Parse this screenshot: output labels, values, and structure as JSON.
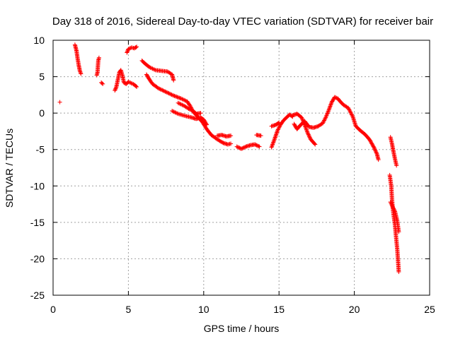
{
  "chart_data": {
    "type": "scatter",
    "title": "Day 318 of 2016, Sidereal Day-to-day VTEC variation (SDTVAR) for receiver bair",
    "xlabel": "GPS time / hours",
    "ylabel": "SDTVAR / TECUs",
    "xlim": [
      0,
      25
    ],
    "ylim": [
      -25,
      10
    ],
    "xticks": [
      "0",
      "5",
      "10",
      "15",
      "20",
      "25"
    ],
    "yticks": [
      "-25",
      "-20",
      "-15",
      "-10",
      "-5",
      "0",
      "5",
      "10"
    ],
    "grid": true,
    "marker": "+",
    "color": "#ff0000",
    "series": [
      {
        "name": "seg-isolated",
        "points": [
          [
            0.45,
            1.5
          ]
        ]
      },
      {
        "name": "seg-early-drop",
        "points": [
          [
            1.45,
            9.4
          ],
          [
            1.55,
            8.6
          ],
          [
            1.62,
            7.6
          ],
          [
            1.7,
            6.6
          ],
          [
            1.78,
            5.8
          ],
          [
            1.85,
            5.4
          ]
        ]
      },
      {
        "name": "seg-3h",
        "points": [
          [
            2.9,
            5.2
          ],
          [
            2.95,
            5.6
          ],
          [
            3.0,
            7.2
          ],
          [
            3.05,
            7.6
          ]
        ]
      },
      {
        "name": "seg-3-3h",
        "points": [
          [
            3.2,
            4.2
          ],
          [
            3.3,
            4.0
          ]
        ]
      },
      {
        "name": "seg-4h-peak",
        "points": [
          [
            4.1,
            3.1
          ],
          [
            4.2,
            3.6
          ],
          [
            4.3,
            4.6
          ],
          [
            4.4,
            5.6
          ],
          [
            4.5,
            5.9
          ],
          [
            4.6,
            5.2
          ],
          [
            4.7,
            4.2
          ],
          [
            4.85,
            4.0
          ],
          [
            5.0,
            4.3
          ],
          [
            5.2,
            4.1
          ],
          [
            5.4,
            3.9
          ],
          [
            5.55,
            3.6
          ]
        ]
      },
      {
        "name": "seg-5h-top",
        "points": [
          [
            4.9,
            8.3
          ],
          [
            5.0,
            8.8
          ],
          [
            5.2,
            9.0
          ],
          [
            5.4,
            8.9
          ],
          [
            5.55,
            9.1
          ]
        ]
      },
      {
        "name": "seg-6h-upper",
        "points": [
          [
            5.9,
            7.2
          ],
          [
            6.1,
            6.8
          ],
          [
            6.4,
            6.3
          ],
          [
            6.8,
            5.9
          ],
          [
            7.2,
            5.8
          ],
          [
            7.6,
            5.7
          ],
          [
            7.9,
            5.3
          ],
          [
            8.0,
            4.5
          ]
        ]
      },
      {
        "name": "seg-6h-lower",
        "points": [
          [
            6.2,
            5.3
          ],
          [
            6.4,
            4.6
          ],
          [
            6.6,
            4.0
          ],
          [
            7.0,
            3.4
          ],
          [
            7.5,
            2.9
          ],
          [
            8.0,
            2.4
          ],
          [
            8.5,
            2.0
          ],
          [
            8.9,
            1.6
          ],
          [
            9.1,
            1.0
          ],
          [
            9.3,
            0.2
          ],
          [
            9.6,
            -0.5
          ],
          [
            9.9,
            -1.2
          ],
          [
            10.2,
            -2.2
          ],
          [
            10.5,
            -3.0
          ],
          [
            10.9,
            -3.6
          ],
          [
            11.3,
            -4.1
          ],
          [
            11.6,
            -4.3
          ],
          [
            11.8,
            -4.2
          ]
        ]
      },
      {
        "name": "seg-8h",
        "points": [
          [
            7.9,
            0.3
          ],
          [
            8.3,
            -0.1
          ],
          [
            8.8,
            -0.4
          ],
          [
            9.2,
            -0.6
          ],
          [
            9.5,
            -0.8
          ],
          [
            9.8,
            -0.6
          ],
          [
            10.0,
            -0.9
          ],
          [
            10.2,
            -1.6
          ]
        ]
      },
      {
        "name": "seg-8-5h",
        "points": [
          [
            8.3,
            1.4
          ],
          [
            8.7,
            1.0
          ],
          [
            9.0,
            0.6
          ],
          [
            9.3,
            0.3
          ],
          [
            9.5,
            -0.1
          ],
          [
            9.8,
            0.0
          ]
        ]
      },
      {
        "name": "seg-11h",
        "points": [
          [
            10.9,
            -3.1
          ],
          [
            11.2,
            -3.0
          ],
          [
            11.5,
            -3.2
          ],
          [
            11.8,
            -3.1
          ]
        ]
      },
      {
        "name": "seg-12h",
        "points": [
          [
            12.2,
            -4.6
          ],
          [
            12.5,
            -4.9
          ],
          [
            12.8,
            -4.6
          ],
          [
            13.1,
            -4.4
          ],
          [
            13.4,
            -4.3
          ],
          [
            13.7,
            -4.6
          ]
        ]
      },
      {
        "name": "seg-13-6h",
        "points": [
          [
            13.5,
            -3.0
          ],
          [
            13.8,
            -3.1
          ]
        ]
      },
      {
        "name": "seg-14-6h",
        "points": [
          [
            14.5,
            -4.7
          ],
          [
            14.7,
            -3.6
          ],
          [
            14.9,
            -2.4
          ],
          [
            15.1,
            -1.6
          ],
          [
            15.3,
            -1.0
          ],
          [
            15.5,
            -0.6
          ],
          [
            15.7,
            -0.2
          ],
          [
            15.9,
            -0.5
          ]
        ]
      },
      {
        "name": "seg-14-5h-upper",
        "points": [
          [
            14.5,
            -1.8
          ],
          [
            14.8,
            -1.6
          ],
          [
            15.0,
            -1.3
          ]
        ]
      },
      {
        "name": "seg-16h-a",
        "points": [
          [
            15.9,
            -0.3
          ],
          [
            16.2,
            -0.1
          ],
          [
            16.5,
            -0.6
          ],
          [
            16.7,
            -1.6
          ],
          [
            16.9,
            -2.7
          ],
          [
            17.1,
            -3.6
          ],
          [
            17.4,
            -4.3
          ]
        ]
      },
      {
        "name": "seg-16h-b",
        "points": [
          [
            16.0,
            -1.5
          ],
          [
            16.2,
            -2.2
          ],
          [
            16.4,
            -1.7
          ],
          [
            16.7,
            -1.1
          ],
          [
            17.0,
            -1.9
          ],
          [
            17.3,
            -2.0
          ],
          [
            17.6,
            -1.8
          ],
          [
            17.9,
            -1.4
          ],
          [
            18.1,
            -0.6
          ],
          [
            18.3,
            0.4
          ],
          [
            18.5,
            1.5
          ],
          [
            18.7,
            2.2
          ],
          [
            18.9,
            2.0
          ],
          [
            19.1,
            1.5
          ],
          [
            19.3,
            1.1
          ],
          [
            19.6,
            0.7
          ],
          [
            19.9,
            -0.5
          ],
          [
            20.1,
            -1.8
          ],
          [
            20.4,
            -2.4
          ],
          [
            20.7,
            -2.9
          ],
          [
            21.0,
            -3.6
          ],
          [
            21.3,
            -4.7
          ],
          [
            21.5,
            -5.6
          ],
          [
            21.6,
            -6.4
          ]
        ]
      },
      {
        "name": "seg-22h-a",
        "points": [
          [
            22.4,
            -3.3
          ],
          [
            22.5,
            -4.2
          ],
          [
            22.6,
            -5.3
          ],
          [
            22.7,
            -6.3
          ],
          [
            22.8,
            -7.2
          ]
        ]
      },
      {
        "name": "seg-22h-b",
        "points": [
          [
            22.35,
            -8.5
          ],
          [
            22.45,
            -10.0
          ],
          [
            22.5,
            -11.8
          ],
          [
            22.55,
            -13.0
          ],
          [
            22.62,
            -14.2
          ],
          [
            22.7,
            -15.4
          ],
          [
            22.78,
            -17.2
          ],
          [
            22.85,
            -18.7
          ],
          [
            22.9,
            -20.2
          ],
          [
            22.95,
            -21.8
          ]
        ]
      },
      {
        "name": "seg-22h-c",
        "points": [
          [
            22.4,
            -12.2
          ],
          [
            22.55,
            -12.9
          ],
          [
            22.7,
            -13.5
          ],
          [
            22.85,
            -14.8
          ],
          [
            22.95,
            -16.3
          ]
        ]
      }
    ]
  }
}
